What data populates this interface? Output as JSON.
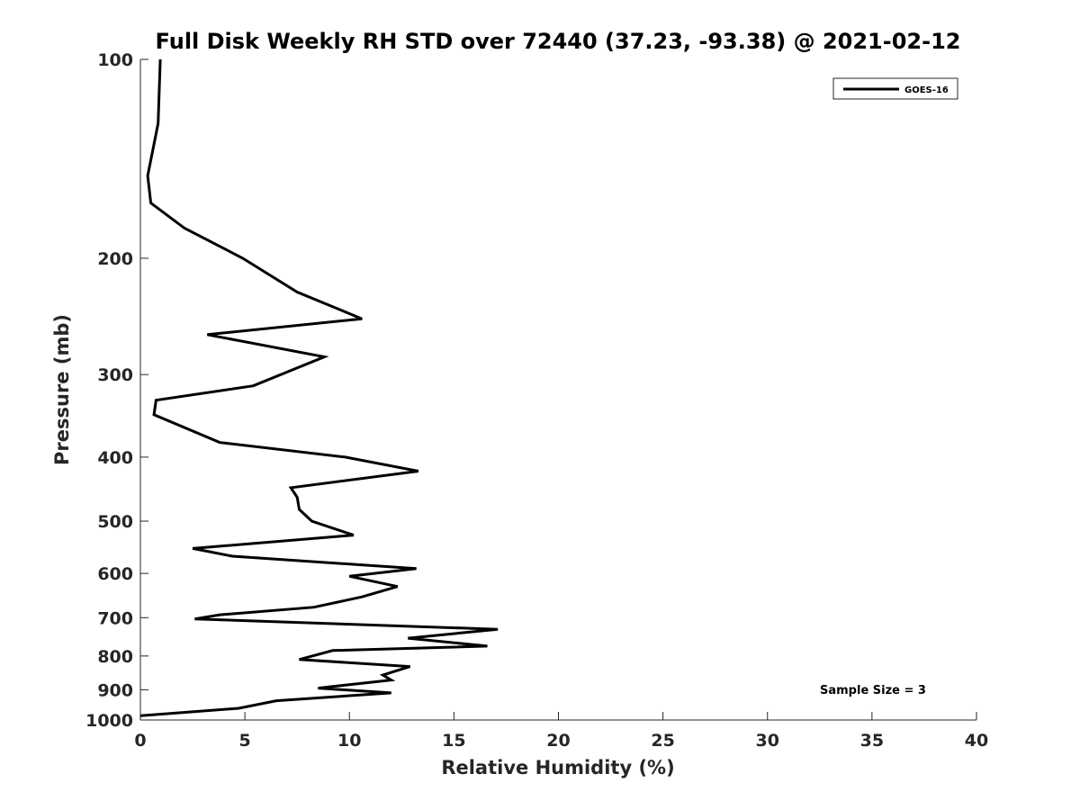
{
  "chart_data": {
    "type": "line",
    "title": "Full Disk Weekly RH STD over 72440 (37.23, -93.38) @ 2021-02-12",
    "xlabel": "Relative Humidity (%)",
    "ylabel": "Pressure (mb)",
    "xlim": [
      0,
      40
    ],
    "ylim": [
      100,
      1000
    ],
    "y_scale": "log",
    "y_reversed": true,
    "x_ticks": [
      0,
      5,
      10,
      15,
      20,
      25,
      30,
      35,
      40
    ],
    "x_tick_labels": [
      "0",
      "5",
      "10",
      "15",
      "20",
      "25",
      "30",
      "35",
      "40"
    ],
    "y_ticks": [
      100,
      200,
      300,
      400,
      500,
      600,
      700,
      800,
      900,
      1000
    ],
    "y_tick_labels": [
      "100",
      "200",
      "300",
      "400",
      "500",
      "600",
      "700",
      "800",
      "900",
      "1000"
    ],
    "grid": false,
    "legend_position": "top-right",
    "annotation": "Sample Size = 3",
    "series": [
      {
        "name": "GOES-16",
        "color": "#000000",
        "x": [
          0.95,
          0.85,
          0.35,
          0.5,
          2.1,
          4.9,
          7.5,
          10.6,
          3.2,
          8.8,
          5.4,
          0.75,
          0.65,
          3.8,
          9.8,
          13.3,
          7.2,
          7.5,
          7.6,
          8.2,
          10.2,
          2.5,
          4.4,
          13.2,
          10.0,
          12.3,
          10.6,
          8.3,
          3.8,
          2.6,
          17.1,
          12.8,
          16.6,
          9.2,
          7.6,
          12.9,
          11.6,
          12.0,
          8.5,
          12.0,
          6.5,
          4.7,
          0.0
        ],
        "y": [
          100,
          125,
          150,
          165,
          180,
          200,
          225,
          247,
          261,
          282,
          312,
          328,
          345,
          380,
          400,
          420,
          445,
          460,
          480,
          500,
          525,
          550,
          565,
          590,
          606,
          628,
          651,
          675,
          693,
          703,
          729,
          752,
          773,
          785,
          810,
          830,
          855,
          870,
          895,
          910,
          935,
          960,
          985
        ]
      }
    ]
  }
}
